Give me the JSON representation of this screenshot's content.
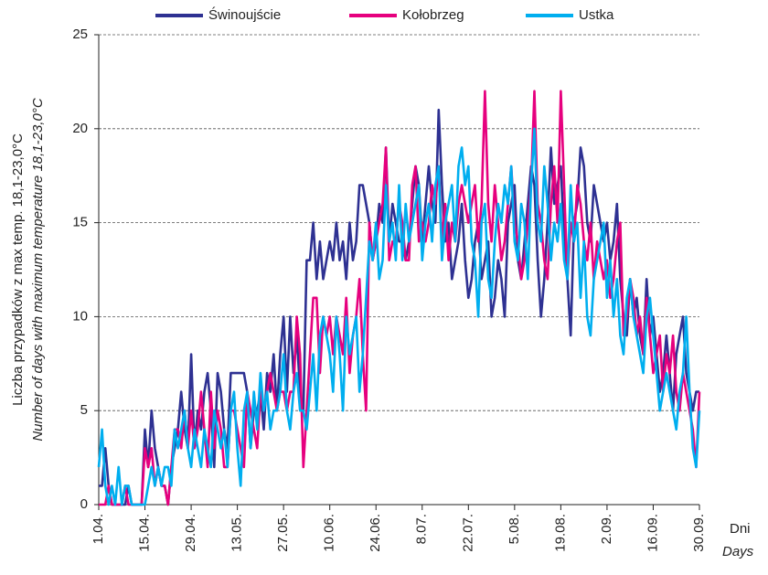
{
  "chart_data": {
    "type": "line",
    "y_label": "Liczba przypadków z max temp. 18,1-23,0°C",
    "y_label_en": "Number of days with maximum temperature 18,1-23,0°C",
    "x_label": "Dni",
    "x_label_en": "Days",
    "categories": [
      "1.04.",
      null,
      null,
      null,
      null,
      null,
      null,
      null,
      null,
      null,
      null,
      null,
      null,
      null,
      "15.04.",
      null,
      null,
      null,
      null,
      null,
      null,
      null,
      null,
      null,
      null,
      null,
      null,
      null,
      "29.04.",
      null,
      null,
      null,
      null,
      null,
      null,
      null,
      null,
      null,
      null,
      null,
      null,
      null,
      "13.05.",
      null,
      null,
      null,
      null,
      null,
      null,
      null,
      null,
      null,
      null,
      null,
      null,
      null,
      "27.05.",
      null,
      null,
      null,
      null,
      null,
      null,
      null,
      null,
      null,
      null,
      null,
      null,
      null,
      "10.06.",
      null,
      null,
      null,
      null,
      null,
      null,
      null,
      null,
      null,
      null,
      null,
      null,
      null,
      "24.06.",
      null,
      null,
      null,
      null,
      null,
      null,
      null,
      null,
      null,
      null,
      null,
      null,
      null,
      "8.07.",
      null,
      null,
      null,
      null,
      null,
      null,
      null,
      null,
      null,
      null,
      null,
      null,
      null,
      "22.07.",
      null,
      null,
      null,
      null,
      null,
      null,
      null,
      null,
      null,
      null,
      null,
      null,
      null,
      "5.08.",
      null,
      null,
      null,
      null,
      null,
      null,
      null,
      null,
      null,
      null,
      null,
      null,
      null,
      "19.08.",
      null,
      null,
      null,
      null,
      null,
      null,
      null,
      null,
      null,
      null,
      null,
      null,
      null,
      "2.09.",
      null,
      null,
      null,
      null,
      null,
      null,
      null,
      null,
      null,
      null,
      null,
      null,
      null,
      "16.09.",
      null,
      null,
      null,
      null,
      null,
      null,
      null,
      null,
      null,
      null,
      null,
      null,
      null,
      "30.09."
    ],
    "series": [
      {
        "name": "Świnoujście",
        "color": "#2e3192",
        "values": [
          1,
          1,
          3,
          1,
          0,
          0,
          0,
          0,
          0,
          1,
          0,
          0,
          0,
          0,
          4,
          2,
          5,
          3,
          2,
          1,
          1,
          0,
          2,
          3,
          4,
          6,
          4,
          3,
          8,
          3,
          5,
          4,
          6,
          7,
          5,
          2,
          7,
          6,
          4,
          3,
          7,
          7,
          7,
          7,
          7,
          6,
          3,
          5,
          5,
          6,
          4,
          7,
          6,
          8,
          5,
          8,
          10,
          6,
          10,
          7,
          9,
          6,
          5,
          13,
          13,
          15,
          12,
          14,
          12,
          13,
          14,
          13,
          15,
          13,
          14,
          12,
          15,
          13,
          14,
          17,
          17,
          16,
          15,
          13,
          14,
          16,
          15,
          19,
          14,
          16,
          15,
          14,
          14,
          13,
          14,
          16,
          18,
          17,
          14,
          16,
          18,
          16,
          15,
          21,
          17,
          14,
          15,
          12,
          13,
          14,
          16,
          13,
          11,
          12,
          14,
          15,
          12,
          13,
          14,
          10,
          11,
          13,
          12,
          10,
          15,
          16,
          17,
          13,
          12,
          14,
          16,
          18,
          17,
          13,
          10,
          12,
          15,
          19,
          16,
          17,
          18,
          14,
          12,
          9,
          15,
          16,
          19,
          18,
          15,
          14,
          17,
          16,
          15,
          14,
          15,
          13,
          14,
          16,
          12,
          10,
          9,
          12,
          10,
          11,
          9,
          8,
          12,
          9,
          10,
          8,
          6,
          7,
          9,
          7,
          5,
          8,
          9,
          10,
          7,
          6,
          5,
          6,
          6
        ]
      },
      {
        "name": "Kołobrzeg",
        "color": "#e6007e",
        "values": [
          0,
          0,
          0,
          1,
          0,
          0,
          0,
          0,
          1,
          0,
          0,
          0,
          0,
          0,
          3,
          2,
          3,
          1,
          2,
          1,
          1,
          0,
          2,
          4,
          4,
          3,
          5,
          3,
          5,
          3,
          4,
          6,
          4,
          2,
          6,
          3,
          5,
          4,
          2,
          2,
          5,
          5,
          4,
          3,
          2,
          6,
          5,
          4,
          3,
          6,
          5,
          6,
          7,
          6,
          5,
          6,
          6,
          5,
          6,
          6,
          10,
          8,
          2,
          5,
          8,
          11,
          11,
          7,
          10,
          9,
          10,
          8,
          10,
          9,
          8,
          11,
          7,
          9,
          10,
          12,
          8,
          5,
          15,
          13,
          14,
          15,
          16,
          19,
          13,
          14,
          14,
          16,
          15,
          13,
          13,
          17,
          18,
          14,
          15,
          14,
          15,
          17,
          16,
          18,
          14,
          16,
          13,
          15,
          14,
          16,
          17,
          16,
          15,
          16,
          17,
          14,
          16,
          22,
          16,
          14,
          17,
          15,
          13,
          14,
          16,
          18,
          15,
          14,
          12,
          13,
          15,
          17,
          22,
          16,
          15,
          13,
          12,
          16,
          18,
          15,
          22,
          17,
          12,
          15,
          14,
          17,
          16,
          14,
          13,
          15,
          12,
          14,
          13,
          12,
          13,
          11,
          12,
          14,
          15,
          9,
          10,
          12,
          11,
          9,
          10,
          8,
          11,
          9,
          7,
          8,
          9,
          6,
          8,
          7,
          9,
          6,
          5,
          7,
          6,
          5,
          4,
          2,
          6
        ]
      },
      {
        "name": "Ustka",
        "color": "#00aeef",
        "values": [
          2,
          4,
          1,
          0,
          1,
          0,
          2,
          0,
          1,
          1,
          0,
          0,
          0,
          0,
          0,
          1,
          2,
          1,
          2,
          1,
          2,
          2,
          1,
          4,
          3,
          4,
          5,
          3,
          2,
          4,
          3,
          2,
          4,
          3,
          2,
          5,
          4,
          3,
          4,
          2,
          5,
          6,
          3,
          1,
          5,
          6,
          3,
          6,
          4,
          7,
          5,
          6,
          4,
          5,
          5,
          6,
          8,
          5,
          4,
          6,
          7,
          5,
          5,
          4,
          6,
          8,
          5,
          9,
          10,
          9,
          8,
          6,
          10,
          8,
          5,
          10,
          8,
          9,
          10,
          6,
          8,
          11,
          14,
          13,
          15,
          12,
          13,
          17,
          14,
          15,
          13,
          17,
          13,
          16,
          14,
          15,
          16,
          17,
          13,
          15,
          16,
          14,
          17,
          18,
          13,
          15,
          16,
          17,
          14,
          18,
          19,
          17,
          18,
          14,
          13,
          10,
          15,
          16,
          12,
          11,
          14,
          16,
          15,
          17,
          16,
          18,
          14,
          13,
          16,
          15,
          12,
          17,
          20,
          15,
          14,
          18,
          16,
          13,
          15,
          14,
          16,
          13,
          12,
          17,
          14,
          15,
          11,
          14,
          10,
          9,
          12,
          13,
          14,
          15,
          11,
          13,
          10,
          12,
          9,
          8,
          11,
          12,
          10,
          9,
          8,
          7,
          10,
          11,
          9,
          7,
          5,
          6,
          7,
          6,
          5,
          4,
          6,
          7,
          10,
          6,
          3,
          2,
          5
        ]
      }
    ],
    "ylim": [
      0,
      25
    ],
    "yticks": [
      0,
      5,
      10,
      15,
      20,
      25
    ],
    "grid": true,
    "legend": "top"
  }
}
